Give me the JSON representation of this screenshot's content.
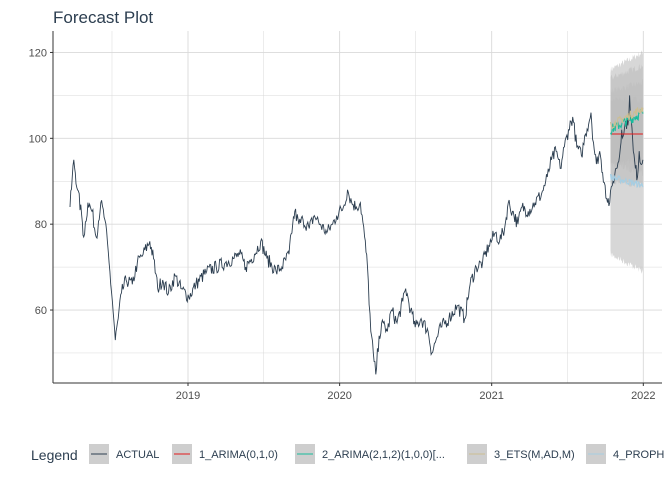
{
  "chart_data": {
    "type": "line",
    "title": "Forecast Plot",
    "xlabel": "",
    "ylabel": "",
    "x_ticks": [
      "2019",
      "2020",
      "2021",
      "2022"
    ],
    "y_ticks": [
      60,
      80,
      100,
      120
    ],
    "xlim": [
      "2018-02-10",
      "2022-02-15"
    ],
    "ylim": [
      43,
      125
    ],
    "grid": true,
    "legend": {
      "title": "Legend",
      "position": "bottom",
      "entries": [
        "ACTUAL",
        "1_ARIMA(0,1,0)",
        "2_ARIMA(2,1,2)(1,0,0)[...",
        "3_ETS(M,AD,M)",
        "4_PROPH"
      ]
    },
    "colors": {
      "actual": "#2c3e50",
      "arima010": "#e31a1c",
      "arima212": "#18bc9c",
      "ets": "#ccbe93",
      "prophet": "#a6cee3",
      "ci_fill": "#bdbdbd",
      "grid": "#d9d9d9",
      "axis": "#333333"
    },
    "actual_anchors": [
      [
        "2018-03-23",
        84
      ],
      [
        "2018-04-01",
        95
      ],
      [
        "2018-04-10",
        88
      ],
      [
        "2018-04-20",
        82
      ],
      [
        "2018-04-25",
        77
      ],
      [
        "2018-05-05",
        85
      ],
      [
        "2018-05-15",
        83
      ],
      [
        "2018-05-25",
        77
      ],
      [
        "2018-06-05",
        85
      ],
      [
        "2018-06-15",
        81
      ],
      [
        "2018-06-25",
        71
      ],
      [
        "2018-07-03",
        62
      ],
      [
        "2018-07-10",
        53
      ],
      [
        "2018-07-17",
        58
      ],
      [
        "2018-07-25",
        64
      ],
      [
        "2018-08-05",
        67
      ],
      [
        "2018-08-20",
        66
      ],
      [
        "2018-09-01",
        71
      ],
      [
        "2018-09-15",
        73
      ],
      [
        "2018-10-01",
        76
      ],
      [
        "2018-10-10",
        72
      ],
      [
        "2018-10-20",
        65
      ],
      [
        "2018-11-01",
        67
      ],
      [
        "2018-11-15",
        64
      ],
      [
        "2018-12-01",
        68
      ],
      [
        "2018-12-15",
        65
      ],
      [
        "2019-01-03",
        63
      ],
      [
        "2019-01-20",
        66
      ],
      [
        "2019-02-15",
        69
      ],
      [
        "2019-03-10",
        70
      ],
      [
        "2019-04-01",
        71
      ],
      [
        "2019-04-20",
        72
      ],
      [
        "2019-05-05",
        73
      ],
      [
        "2019-05-20",
        70
      ],
      [
        "2019-06-10",
        73
      ],
      [
        "2019-06-25",
        76
      ],
      [
        "2019-07-10",
        72
      ],
      [
        "2019-08-01",
        69
      ],
      [
        "2019-08-15",
        70
      ],
      [
        "2019-09-01",
        73
      ],
      [
        "2019-09-10",
        80
      ],
      [
        "2019-09-15",
        83
      ],
      [
        "2019-09-25",
        80
      ],
      [
        "2019-10-05",
        81
      ],
      [
        "2019-10-20",
        79
      ],
      [
        "2019-11-01",
        82
      ],
      [
        "2019-11-15",
        80
      ],
      [
        "2019-12-01",
        78
      ],
      [
        "2019-12-15",
        80
      ],
      [
        "2019-12-25",
        82
      ],
      [
        "2020-01-10",
        84
      ],
      [
        "2020-01-20",
        88
      ],
      [
        "2020-01-30",
        85
      ],
      [
        "2020-02-10",
        84
      ],
      [
        "2020-02-20",
        85
      ],
      [
        "2020-03-01",
        77
      ],
      [
        "2020-03-08",
        70
      ],
      [
        "2020-03-16",
        55
      ],
      [
        "2020-03-24",
        48
      ],
      [
        "2020-03-28",
        45
      ],
      [
        "2020-04-05",
        54
      ],
      [
        "2020-04-15",
        57
      ],
      [
        "2020-04-25",
        55
      ],
      [
        "2020-05-05",
        60
      ],
      [
        "2020-05-18",
        57
      ],
      [
        "2020-06-01",
        62
      ],
      [
        "2020-06-08",
        65
      ],
      [
        "2020-06-20",
        60
      ],
      [
        "2020-07-01",
        56
      ],
      [
        "2020-07-15",
        58
      ],
      [
        "2020-08-01",
        55
      ],
      [
        "2020-08-10",
        50
      ],
      [
        "2020-08-20",
        53
      ],
      [
        "2020-09-01",
        56
      ],
      [
        "2020-09-20",
        58
      ],
      [
        "2020-10-10",
        61
      ],
      [
        "2020-10-28",
        58
      ],
      [
        "2020-11-10",
        66
      ],
      [
        "2020-11-25",
        70
      ],
      [
        "2020-12-10",
        71
      ],
      [
        "2020-12-25",
        75
      ],
      [
        "2021-01-10",
        78
      ],
      [
        "2021-01-20",
        76
      ],
      [
        "2021-02-01",
        79
      ],
      [
        "2021-02-10",
        85
      ],
      [
        "2021-02-20",
        83
      ],
      [
        "2021-03-05",
        80
      ],
      [
        "2021-03-15",
        84
      ],
      [
        "2021-03-30",
        83
      ],
      [
        "2021-04-15",
        85
      ],
      [
        "2021-05-01",
        87
      ],
      [
        "2021-05-15",
        91
      ],
      [
        "2021-05-25",
        95
      ],
      [
        "2021-06-05",
        97
      ],
      [
        "2021-06-15",
        93
      ],
      [
        "2021-06-25",
        98
      ],
      [
        "2021-07-05",
        102
      ],
      [
        "2021-07-15",
        105
      ],
      [
        "2021-07-25",
        98
      ],
      [
        "2021-08-05",
        96
      ],
      [
        "2021-08-15",
        101
      ],
      [
        "2021-08-28",
        106
      ],
      [
        "2021-09-03",
        99
      ],
      [
        "2021-09-10",
        94
      ],
      [
        "2021-09-18",
        97
      ],
      [
        "2021-09-25",
        92
      ],
      [
        "2021-10-01",
        89
      ],
      [
        "2021-10-05",
        86
      ],
      [
        "2021-10-12",
        85
      ],
      [
        "2021-10-20",
        90
      ],
      [
        "2021-10-28",
        93
      ],
      [
        "2021-11-05",
        96
      ],
      [
        "2021-11-10",
        102
      ],
      [
        "2021-11-15",
        101
      ],
      [
        "2021-11-20",
        104
      ],
      [
        "2021-11-25",
        103
      ],
      [
        "2021-11-29",
        110
      ],
      [
        "2021-12-03",
        104
      ],
      [
        "2021-12-08",
        97
      ],
      [
        "2021-12-13",
        93
      ],
      [
        "2021-12-18",
        91
      ],
      [
        "2021-12-22",
        97
      ],
      [
        "2021-12-26",
        94
      ],
      [
        "2021-12-31",
        95
      ]
    ],
    "forecast_start": "2021-10-14",
    "forecast_end": "2021-12-31",
    "ci_bands": [
      {
        "lo_start": 73,
        "lo_end": 69,
        "hi_start": 116,
        "hi_end": 120
      },
      {
        "lo_start": 94,
        "lo_end": 95,
        "hi_start": 109,
        "hi_end": 109
      },
      {
        "lo_start": 94,
        "lo_end": 92,
        "hi_start": 111,
        "hi_end": 113
      },
      {
        "lo_start": 90,
        "lo_end": 89,
        "hi_start": 114,
        "hi_end": 117
      }
    ],
    "forecast_series": [
      {
        "key": "arima010",
        "start": 101,
        "end": 101,
        "noise": 0
      },
      {
        "key": "arima212",
        "start": 102,
        "end": 106,
        "noise": 1.2
      },
      {
        "key": "ets",
        "start": 103,
        "end": 107,
        "noise": 1.0
      },
      {
        "key": "prophet",
        "start": 91,
        "end": 89,
        "noise": 0.8
      }
    ]
  }
}
